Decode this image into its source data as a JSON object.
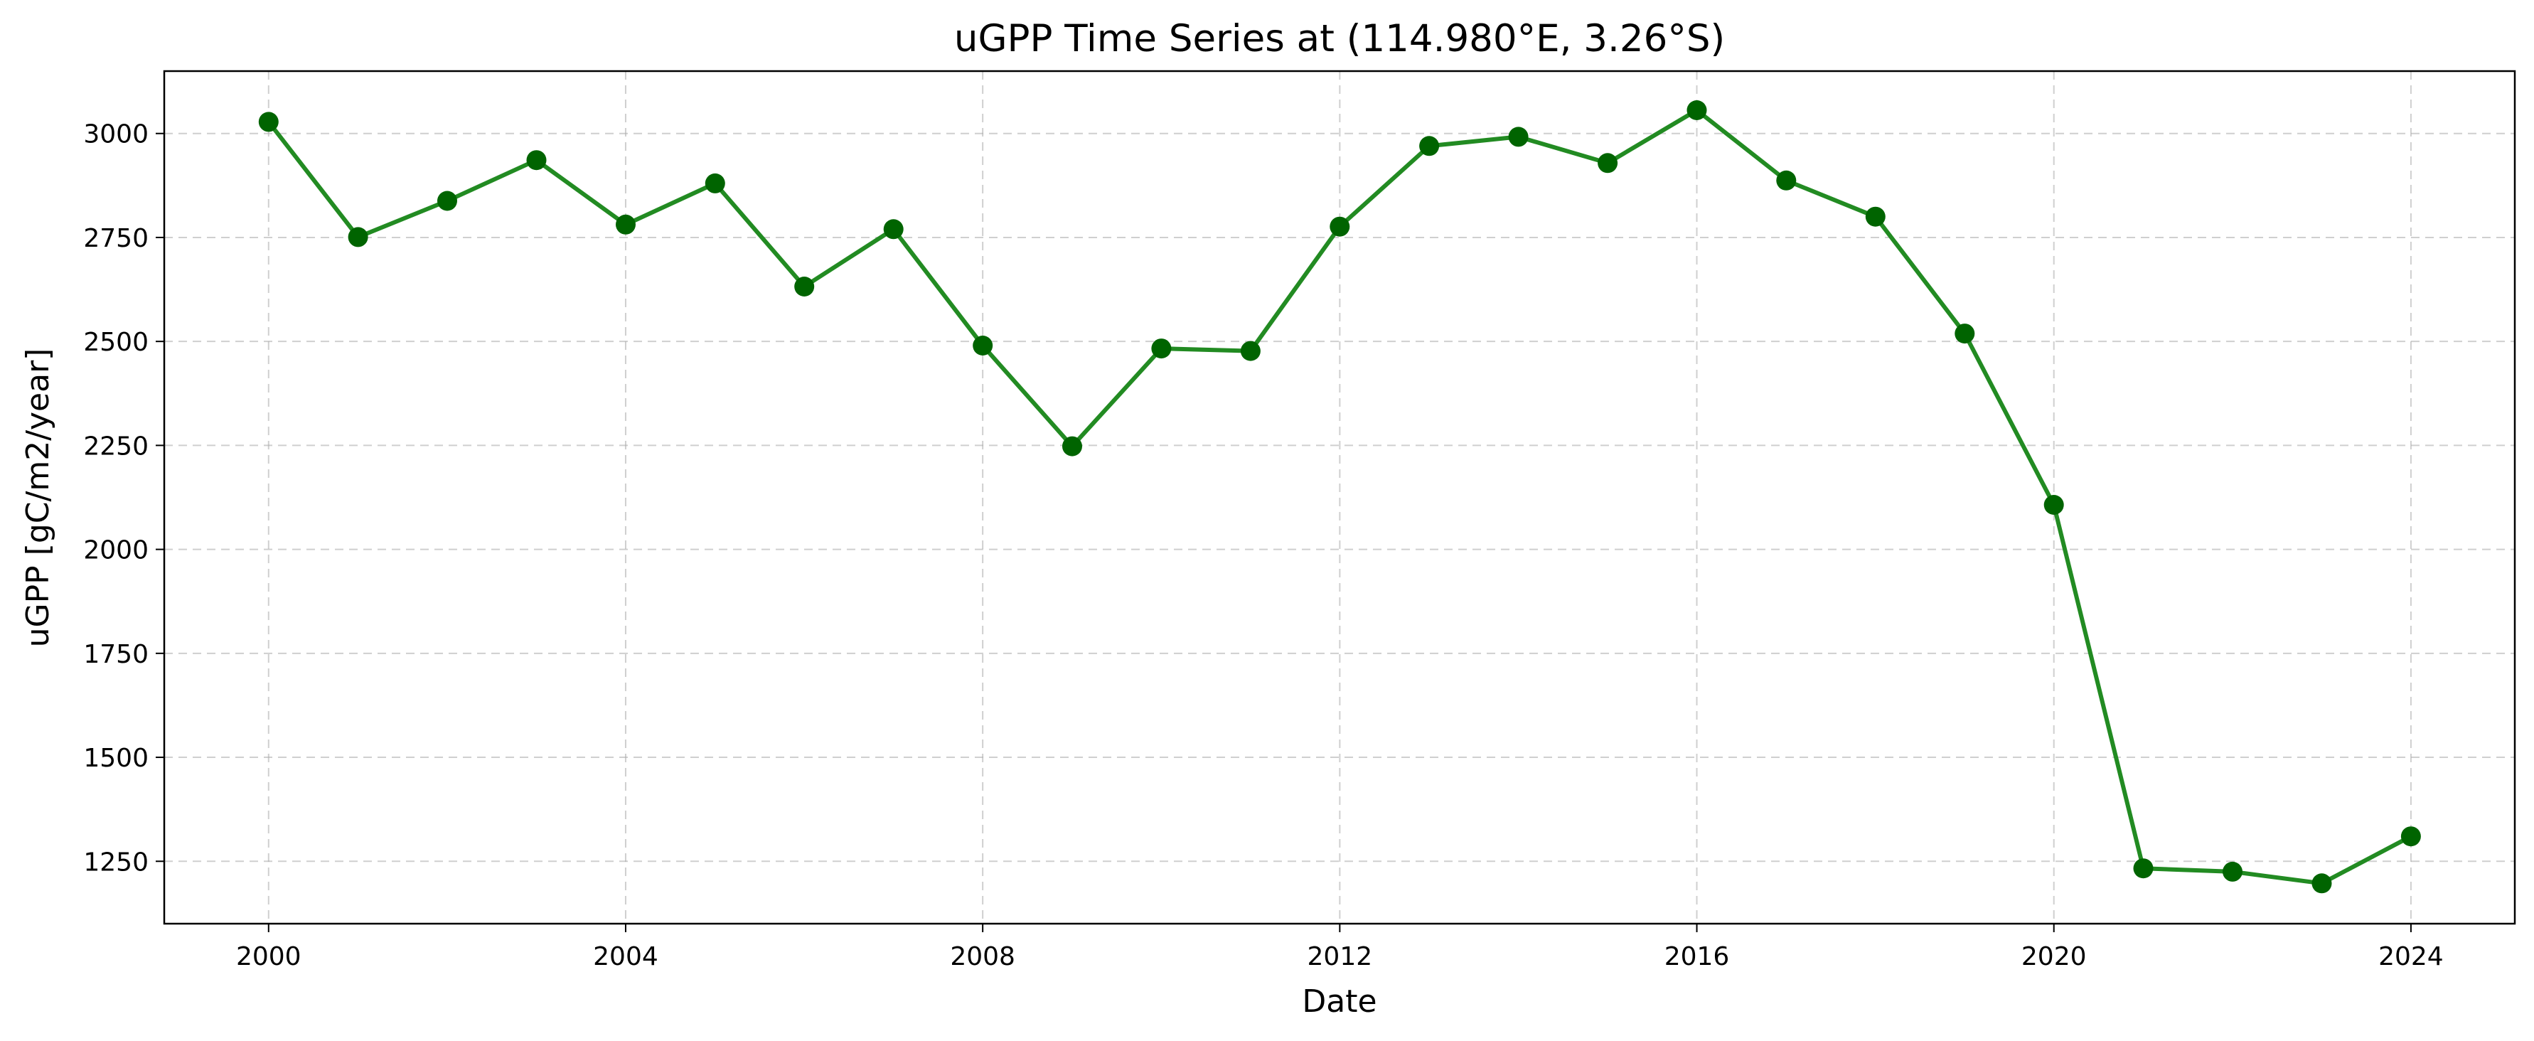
{
  "chart_data": {
    "type": "line",
    "title": "uGPP Time Series at (114.980°E, 3.26°S)",
    "xlabel": "Date",
    "ylabel": "uGPP [gC/m2/year]",
    "xlim": [
      "1998-10-31",
      "2025-03-01"
    ],
    "ylim": [
      1100,
      3150
    ],
    "xticks": [
      "2000",
      "2004",
      "2008",
      "2012",
      "2016",
      "2020",
      "2024"
    ],
    "yticks": [
      1250,
      1500,
      1750,
      2000,
      2250,
      2500,
      2750,
      3000
    ],
    "grid": true,
    "series": [
      {
        "color": "#228b22",
        "marker_color": "#006400",
        "x": [
          "2000-01-01",
          "2001-01-01",
          "2002-01-01",
          "2003-01-01",
          "2004-01-01",
          "2005-01-01",
          "2006-01-01",
          "2007-01-01",
          "2008-01-01",
          "2009-01-01",
          "2010-01-01",
          "2011-01-01",
          "2012-01-01",
          "2013-01-01",
          "2014-01-01",
          "2015-01-01",
          "2016-01-01",
          "2017-01-01",
          "2018-01-01",
          "2019-01-01",
          "2020-01-01",
          "2021-01-01",
          "2022-01-01",
          "2023-01-01",
          "2024-01-01"
        ],
        "values": [
          3028,
          2751,
          2838,
          2936,
          2781,
          2880,
          2632,
          2770,
          2490,
          2248,
          2483,
          2477,
          2776,
          2970,
          2992,
          2929,
          3056,
          2887,
          2800,
          2519,
          2107,
          1233,
          1225,
          1197,
          1310
        ]
      }
    ]
  }
}
